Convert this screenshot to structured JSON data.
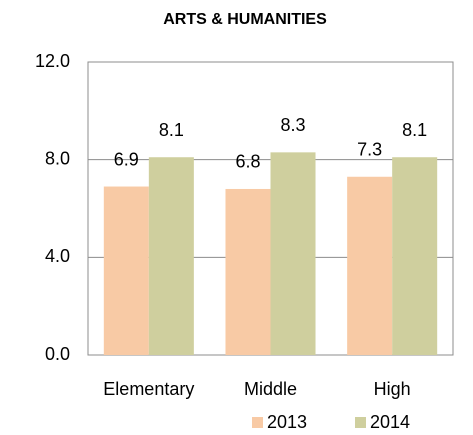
{
  "chart_data": {
    "type": "bar",
    "title": "ARTS & HUMANITIES",
    "categories": [
      "Elementary",
      "Middle",
      "High"
    ],
    "series": [
      {
        "name": "2013",
        "color": "#f8caa5",
        "values": [
          6.9,
          6.8,
          7.3
        ]
      },
      {
        "name": "2014",
        "color": "#cfcf9e",
        "values": [
          8.1,
          8.3,
          8.1
        ]
      }
    ],
    "ylim": [
      0,
      12
    ],
    "yticks": [
      {
        "value": 0,
        "label": "0.0"
      },
      {
        "value": 4,
        "label": "4.0"
      },
      {
        "value": 8,
        "label": "8.0"
      },
      {
        "value": 12,
        "label": "12.0"
      }
    ],
    "grid": true,
    "legend": "bottom"
  }
}
